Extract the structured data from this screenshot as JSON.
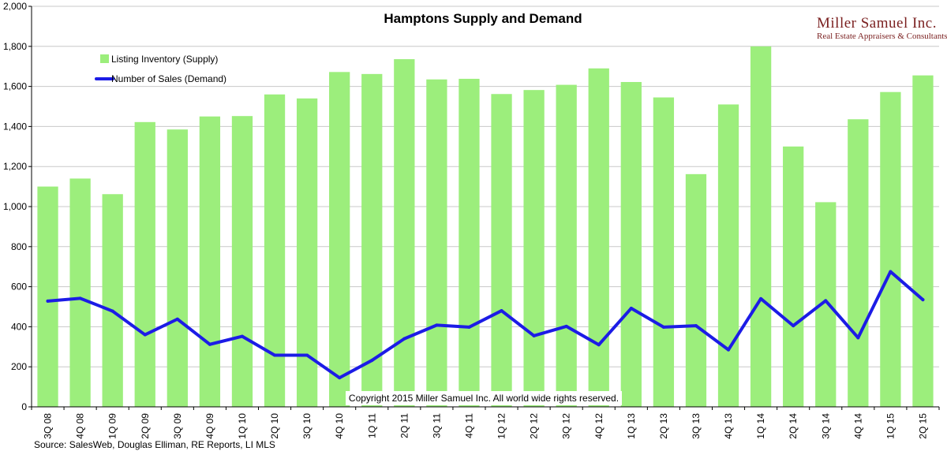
{
  "chart_data": {
    "type": "bar",
    "title": "Hamptons Supply and Demand",
    "categories": [
      "3Q 08",
      "4Q 08",
      "1Q 09",
      "2Q 09",
      "3Q 09",
      "4Q 09",
      "1Q 10",
      "2Q 10",
      "3Q 10",
      "4Q 10",
      "1Q 11",
      "2Q 11",
      "3Q 11",
      "4Q 11",
      "1Q 12",
      "2Q 12",
      "3Q 12",
      "4Q 12",
      "1Q 13",
      "2Q 13",
      "3Q 13",
      "4Q 13",
      "1Q 14",
      "2Q 14",
      "3Q 14",
      "4Q 14",
      "1Q 15",
      "2Q 15"
    ],
    "series": [
      {
        "name": "Listing Inventory (Supply)",
        "type": "bar",
        "color": "#9cee7c",
        "values": [
          1100,
          1140,
          1062,
          1422,
          1385,
          1450,
          1452,
          1560,
          1540,
          1672,
          1662,
          1736,
          1635,
          1638,
          1562,
          1582,
          1608,
          1690,
          1622,
          1545,
          1162,
          1510,
          1800,
          1300,
          1022,
          1436,
          1572,
          1655
        ]
      },
      {
        "name": "Number of Sales (Demand)",
        "type": "line",
        "color": "#1c1ce6",
        "values": [
          528,
          542,
          478,
          360,
          438,
          312,
          352,
          258,
          258,
          145,
          232,
          340,
          408,
          398,
          480,
          355,
          402,
          310,
          492,
          398,
          405,
          285,
          540,
          405,
          530,
          345,
          675,
          535
        ]
      }
    ],
    "ylim": [
      0,
      2000
    ],
    "yticks": [
      0,
      200,
      400,
      600,
      800,
      1000,
      1200,
      1400,
      1600,
      1800,
      2000
    ],
    "ytick_labels": [
      "0",
      "200",
      "400",
      "600",
      "800",
      "1,000",
      "1,200",
      "1,400",
      "1,600",
      "1,800",
      "2,000"
    ],
    "grid": true,
    "legend_position": "top-left"
  },
  "brand": {
    "name": "Miller Samuel Inc.",
    "tagline": "Real Estate Appraisers & Consultants"
  },
  "copyright": "Copyright 2015 Miller Samuel Inc.  All world wide rights reserved.",
  "source": "Source: SalesWeb, Douglas Elliman, RE Reports, LI MLS"
}
